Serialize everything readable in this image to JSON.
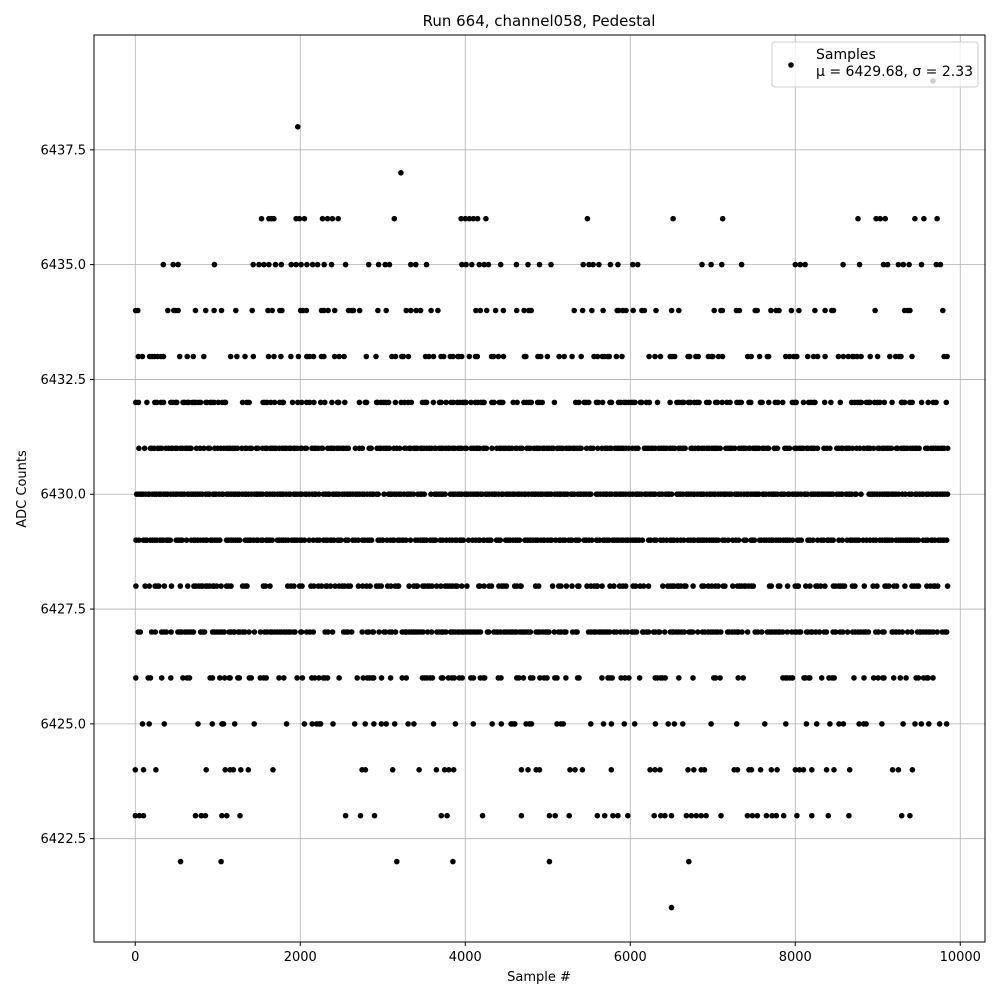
{
  "chart_data": {
    "type": "scatter",
    "title": "Run 664, channel058, Pedestal",
    "xlabel": "Sample #",
    "ylabel": "ADC Counts",
    "xlim": [
      -500,
      10300
    ],
    "ylim": [
      6420.25,
      6440.0
    ],
    "xticks": [
      0,
      2000,
      4000,
      6000,
      8000,
      10000
    ],
    "xtick_labels": [
      "0",
      "2000",
      "4000",
      "6000",
      "8000",
      "10000"
    ],
    "yticks": [
      6422.5,
      6425.0,
      6427.5,
      6430.0,
      6432.5,
      6435.0,
      6437.5
    ],
    "ytick_labels": [
      "6422.5",
      "6425.0",
      "6427.5",
      "6430.0",
      "6432.5",
      "6435.0",
      "6437.5"
    ],
    "grid": true,
    "legend": {
      "placement": "top-right",
      "entries": [
        {
          "label": "Samples",
          "sublabel": "μ = 6429.68, σ = 2.33"
        }
      ]
    },
    "marker_color": "#000000",
    "series": [
      {
        "name": "Samples",
        "x_range": [
          0,
          9850
        ],
        "n_points": 9850,
        "level_values": [
          6421,
          6422,
          6423,
          6424,
          6425,
          6426,
          6427,
          6428,
          6429,
          6430,
          6431,
          6432,
          6433,
          6434,
          6435,
          6436,
          6437,
          6438,
          6439
        ],
        "points": [
          {
            "x": 1970,
            "y": 6438
          },
          {
            "x": 9670,
            "y": 6439
          },
          {
            "x": 3220,
            "y": 6437
          },
          {
            "x": 1530,
            "y": 6436
          },
          {
            "x": 1620,
            "y": 6436
          },
          {
            "x": 1650,
            "y": 6436
          },
          {
            "x": 1680,
            "y": 6436
          },
          {
            "x": 1950,
            "y": 6436
          },
          {
            "x": 1990,
            "y": 6436
          },
          {
            "x": 2050,
            "y": 6436
          },
          {
            "x": 2270,
            "y": 6436
          },
          {
            "x": 2330,
            "y": 6436
          },
          {
            "x": 2390,
            "y": 6436
          },
          {
            "x": 2460,
            "y": 6436
          },
          {
            "x": 3140,
            "y": 6436
          },
          {
            "x": 3950,
            "y": 6436
          },
          {
            "x": 4000,
            "y": 6436
          },
          {
            "x": 4050,
            "y": 6436
          },
          {
            "x": 4100,
            "y": 6436
          },
          {
            "x": 4150,
            "y": 6436
          },
          {
            "x": 4250,
            "y": 6436
          },
          {
            "x": 5480,
            "y": 6436
          },
          {
            "x": 6520,
            "y": 6436
          },
          {
            "x": 7120,
            "y": 6436
          },
          {
            "x": 8760,
            "y": 6436
          },
          {
            "x": 8980,
            "y": 6436
          },
          {
            "x": 9030,
            "y": 6436
          },
          {
            "x": 9090,
            "y": 6436
          },
          {
            "x": 9450,
            "y": 6436
          },
          {
            "x": 9560,
            "y": 6436
          },
          {
            "x": 9720,
            "y": 6436
          },
          {
            "x": 340,
            "y": 6435
          },
          {
            "x": 460,
            "y": 6435
          },
          {
            "x": 520,
            "y": 6435
          },
          {
            "x": 960,
            "y": 6435
          },
          {
            "x": 1430,
            "y": 6435
          },
          {
            "x": 1500,
            "y": 6435
          },
          {
            "x": 1560,
            "y": 6435
          },
          {
            "x": 1620,
            "y": 6435
          },
          {
            "x": 1700,
            "y": 6435
          },
          {
            "x": 1770,
            "y": 6435
          },
          {
            "x": 1890,
            "y": 6435
          },
          {
            "x": 1950,
            "y": 6435
          },
          {
            "x": 2010,
            "y": 6435
          },
          {
            "x": 2080,
            "y": 6435
          },
          {
            "x": 2150,
            "y": 6435
          },
          {
            "x": 2210,
            "y": 6435
          },
          {
            "x": 2290,
            "y": 6435
          },
          {
            "x": 2380,
            "y": 6435
          },
          {
            "x": 2550,
            "y": 6435
          },
          {
            "x": 2830,
            "y": 6435
          },
          {
            "x": 2950,
            "y": 6435
          },
          {
            "x": 3030,
            "y": 6435
          },
          {
            "x": 3080,
            "y": 6435
          },
          {
            "x": 3340,
            "y": 6435
          },
          {
            "x": 3400,
            "y": 6435
          },
          {
            "x": 3530,
            "y": 6435
          },
          {
            "x": 3960,
            "y": 6435
          },
          {
            "x": 4010,
            "y": 6435
          },
          {
            "x": 4080,
            "y": 6435
          },
          {
            "x": 4170,
            "y": 6435
          },
          {
            "x": 4230,
            "y": 6435
          },
          {
            "x": 4280,
            "y": 6435
          },
          {
            "x": 4430,
            "y": 6435
          },
          {
            "x": 4620,
            "y": 6435
          },
          {
            "x": 4760,
            "y": 6435
          },
          {
            "x": 4900,
            "y": 6435
          },
          {
            "x": 5040,
            "y": 6435
          },
          {
            "x": 5430,
            "y": 6435
          },
          {
            "x": 5500,
            "y": 6435
          },
          {
            "x": 5550,
            "y": 6435
          },
          {
            "x": 5620,
            "y": 6435
          },
          {
            "x": 5760,
            "y": 6435
          },
          {
            "x": 5850,
            "y": 6435
          },
          {
            "x": 6030,
            "y": 6435
          },
          {
            "x": 6090,
            "y": 6435
          },
          {
            "x": 6870,
            "y": 6435
          },
          {
            "x": 6980,
            "y": 6435
          },
          {
            "x": 7110,
            "y": 6435
          },
          {
            "x": 7350,
            "y": 6435
          },
          {
            "x": 8000,
            "y": 6435
          },
          {
            "x": 8060,
            "y": 6435
          },
          {
            "x": 8120,
            "y": 6435
          },
          {
            "x": 8580,
            "y": 6435
          },
          {
            "x": 8780,
            "y": 6435
          },
          {
            "x": 9070,
            "y": 6435
          },
          {
            "x": 9120,
            "y": 6435
          },
          {
            "x": 9250,
            "y": 6435
          },
          {
            "x": 9310,
            "y": 6435
          },
          {
            "x": 9380,
            "y": 6435
          },
          {
            "x": 9530,
            "y": 6435
          },
          {
            "x": 9710,
            "y": 6435
          },
          {
            "x": 9760,
            "y": 6435
          },
          {
            "x": 550,
            "y": 6422
          },
          {
            "x": 1040,
            "y": 6422
          },
          {
            "x": 3170,
            "y": 6422
          },
          {
            "x": 3850,
            "y": 6422
          },
          {
            "x": 5020,
            "y": 6422
          },
          {
            "x": 6710,
            "y": 6422
          },
          {
            "x": 6500,
            "y": 6421
          },
          {
            "x": 0,
            "y": 6423
          },
          {
            "x": 50,
            "y": 6423
          },
          {
            "x": 100,
            "y": 6423
          },
          {
            "x": 730,
            "y": 6423
          },
          {
            "x": 800,
            "y": 6423
          },
          {
            "x": 850,
            "y": 6423
          },
          {
            "x": 1050,
            "y": 6423
          },
          {
            "x": 1110,
            "y": 6423
          },
          {
            "x": 1270,
            "y": 6423
          },
          {
            "x": 2550,
            "y": 6423
          },
          {
            "x": 2730,
            "y": 6423
          },
          {
            "x": 2900,
            "y": 6423
          },
          {
            "x": 3710,
            "y": 6423
          },
          {
            "x": 3780,
            "y": 6423
          },
          {
            "x": 4210,
            "y": 6423
          },
          {
            "x": 4680,
            "y": 6423
          },
          {
            "x": 5020,
            "y": 6423
          },
          {
            "x": 5090,
            "y": 6423
          },
          {
            "x": 5260,
            "y": 6423
          },
          {
            "x": 5600,
            "y": 6423
          },
          {
            "x": 5690,
            "y": 6423
          },
          {
            "x": 5790,
            "y": 6423
          },
          {
            "x": 5850,
            "y": 6423
          },
          {
            "x": 5970,
            "y": 6423
          },
          {
            "x": 6290,
            "y": 6423
          },
          {
            "x": 6370,
            "y": 6423
          },
          {
            "x": 6420,
            "y": 6423
          },
          {
            "x": 6500,
            "y": 6423
          },
          {
            "x": 6680,
            "y": 6423
          },
          {
            "x": 6740,
            "y": 6423
          },
          {
            "x": 6800,
            "y": 6423
          },
          {
            "x": 6860,
            "y": 6423
          },
          {
            "x": 6920,
            "y": 6423
          },
          {
            "x": 7100,
            "y": 6423
          },
          {
            "x": 7420,
            "y": 6423
          },
          {
            "x": 7480,
            "y": 6423
          },
          {
            "x": 7540,
            "y": 6423
          },
          {
            "x": 7650,
            "y": 6423
          },
          {
            "x": 7720,
            "y": 6423
          },
          {
            "x": 7770,
            "y": 6423
          },
          {
            "x": 7860,
            "y": 6423
          },
          {
            "x": 8020,
            "y": 6423
          },
          {
            "x": 8200,
            "y": 6423
          },
          {
            "x": 8400,
            "y": 6423
          },
          {
            "x": 8650,
            "y": 6423
          },
          {
            "x": 9290,
            "y": 6423
          },
          {
            "x": 9390,
            "y": 6423
          },
          {
            "x": 0,
            "y": 6424
          },
          {
            "x": 100,
            "y": 6424
          },
          {
            "x": 250,
            "y": 6424
          },
          {
            "x": 860,
            "y": 6424
          },
          {
            "x": 1090,
            "y": 6424
          },
          {
            "x": 1150,
            "y": 6424
          },
          {
            "x": 1190,
            "y": 6424
          },
          {
            "x": 1280,
            "y": 6424
          },
          {
            "x": 1370,
            "y": 6424
          },
          {
            "x": 1670,
            "y": 6424
          },
          {
            "x": 2750,
            "y": 6424
          },
          {
            "x": 2790,
            "y": 6424
          },
          {
            "x": 3120,
            "y": 6424
          },
          {
            "x": 3440,
            "y": 6424
          },
          {
            "x": 3650,
            "y": 6424
          },
          {
            "x": 3750,
            "y": 6424
          },
          {
            "x": 3800,
            "y": 6424
          },
          {
            "x": 3860,
            "y": 6424
          },
          {
            "x": 4680,
            "y": 6424
          },
          {
            "x": 4760,
            "y": 6424
          },
          {
            "x": 4860,
            "y": 6424
          },
          {
            "x": 4900,
            "y": 6424
          },
          {
            "x": 5270,
            "y": 6424
          },
          {
            "x": 5330,
            "y": 6424
          },
          {
            "x": 5420,
            "y": 6424
          },
          {
            "x": 5770,
            "y": 6424
          },
          {
            "x": 6240,
            "y": 6424
          },
          {
            "x": 6300,
            "y": 6424
          },
          {
            "x": 6360,
            "y": 6424
          },
          {
            "x": 6700,
            "y": 6424
          },
          {
            "x": 6770,
            "y": 6424
          },
          {
            "x": 6860,
            "y": 6424
          },
          {
            "x": 6900,
            "y": 6424
          },
          {
            "x": 7260,
            "y": 6424
          },
          {
            "x": 7300,
            "y": 6424
          },
          {
            "x": 7440,
            "y": 6424
          },
          {
            "x": 7470,
            "y": 6424
          },
          {
            "x": 7580,
            "y": 6424
          },
          {
            "x": 7710,
            "y": 6424
          },
          {
            "x": 7780,
            "y": 6424
          },
          {
            "x": 8000,
            "y": 6424
          },
          {
            "x": 8050,
            "y": 6424
          },
          {
            "x": 8100,
            "y": 6424
          },
          {
            "x": 8200,
            "y": 6424
          },
          {
            "x": 8380,
            "y": 6424
          },
          {
            "x": 8470,
            "y": 6424
          },
          {
            "x": 8660,
            "y": 6424
          },
          {
            "x": 9180,
            "y": 6424
          },
          {
            "x": 9250,
            "y": 6424
          },
          {
            "x": 9420,
            "y": 6424
          }
        ]
      }
    ]
  }
}
